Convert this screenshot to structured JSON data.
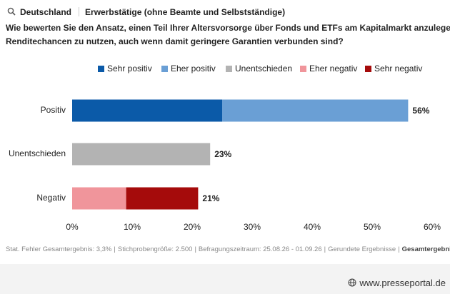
{
  "header": {
    "region": "Deutschland",
    "group": "Erwerbstätige (ohne Beamte und Selbstständige)"
  },
  "question": [
    "Wie bewerten Sie den Ansatz, einen Teil Ihrer Altersvorsorge über Fonds und ETFs am Kapitalmarkt anzulegen, um he",
    "Renditechancen zu nutzen, auch wenn damit geringere Garantien verbunden sind?"
  ],
  "chart_data": {
    "type": "stacked-barh",
    "categories": [
      "Positiv",
      "Unentschieden",
      "Negativ"
    ],
    "series": [
      {
        "name": "Sehr positiv",
        "color": "#0b5aa8",
        "values": [
          25,
          null,
          null
        ]
      },
      {
        "name": "Eher positiv",
        "color": "#6a9fd5",
        "values": [
          31,
          null,
          null
        ]
      },
      {
        "name": "Unentschieden",
        "color": "#b3b3b3",
        "values": [
          null,
          23,
          null
        ]
      },
      {
        "name": "Eher negativ",
        "color": "#f0959b",
        "values": [
          null,
          null,
          9
        ]
      },
      {
        "name": "Sehr negativ",
        "color": "#a50b0b",
        "values": [
          null,
          null,
          12
        ]
      }
    ],
    "totals": [
      56,
      23,
      21
    ],
    "total_labels": [
      "56%",
      "23%",
      "21%"
    ],
    "xlim": [
      0,
      60
    ],
    "xticks": [
      {
        "value": 0,
        "label": "0%"
      },
      {
        "value": 10,
        "label": "10%"
      },
      {
        "value": 20,
        "label": "20%"
      },
      {
        "value": 30,
        "label": "30%"
      },
      {
        "value": 40,
        "label": "40%"
      },
      {
        "value": 50,
        "label": "50%"
      },
      {
        "value": 60,
        "label": "60%"
      }
    ],
    "grid": false,
    "legend": "top"
  },
  "footer": [
    "Stat. Fehler Gesamtergebnis: 3,3%",
    "Stichprobengröße: 2.500",
    "Befragungszeitraum: 25.08.26 - 01.09.26",
    "Gerundete Ergebnisse",
    "Gesamtergebnis"
  ],
  "watermark": "www.presseportal.de"
}
